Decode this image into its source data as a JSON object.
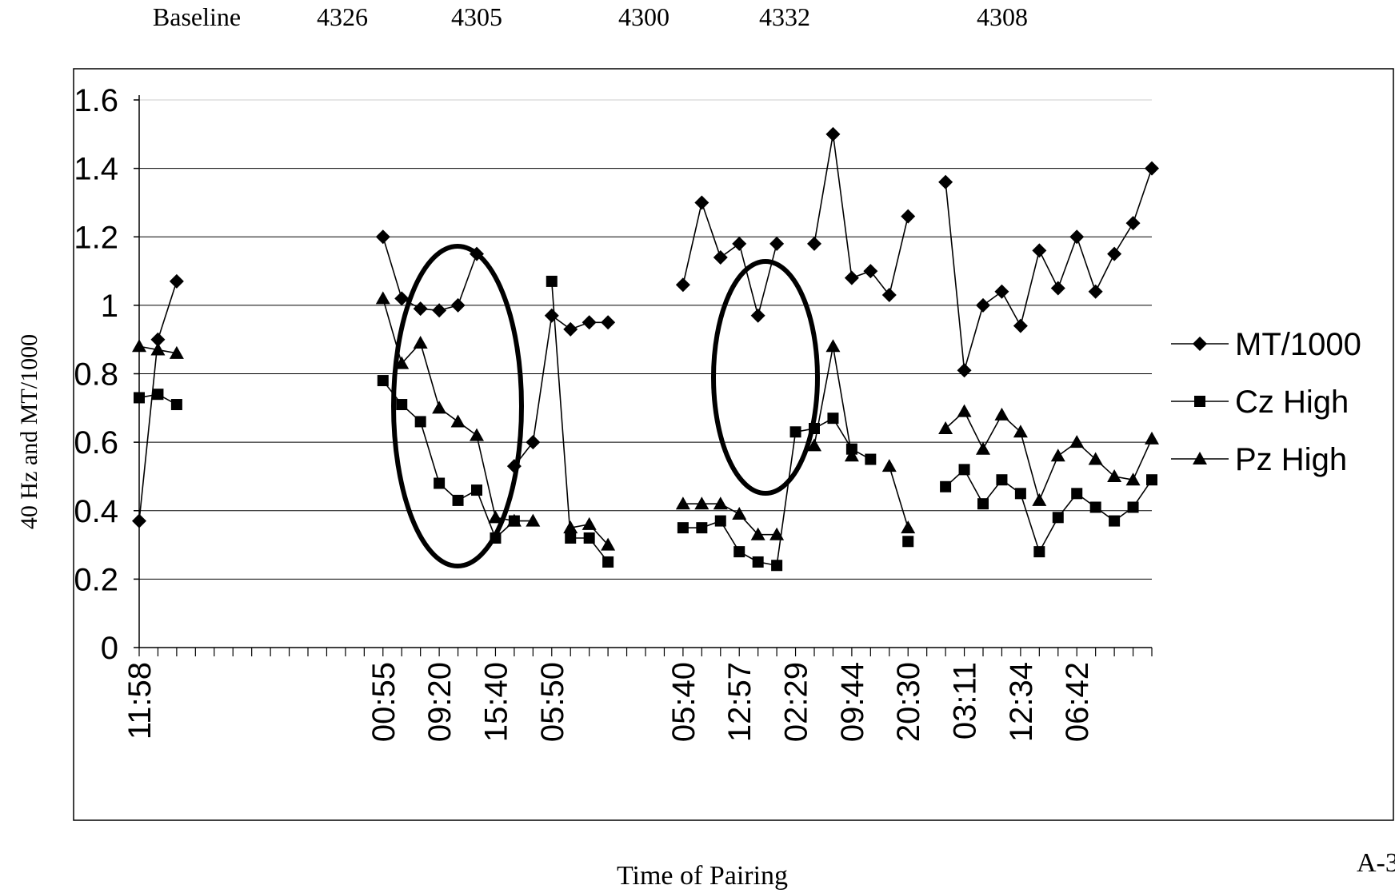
{
  "header": {
    "groups": [
      "Baseline",
      "4326",
      "4305",
      "4300",
      "4332",
      "4308"
    ]
  },
  "page_label": "A-3",
  "chart_data": {
    "type": "line",
    "xlabel": "Time of Pairing",
    "ylabel": "40 Hz and MT/1000",
    "ylim": [
      0,
      1.6
    ],
    "yticks": [
      "0",
      "0.2",
      "0.4",
      "0.6",
      "0.8",
      "1",
      "1.2",
      "1.4",
      "1.6"
    ],
    "grid": true,
    "legend_position": "right",
    "categories": [
      "11:58",
      "",
      "",
      "",
      "",
      "",
      "",
      "",
      "",
      "",
      "",
      "",
      "",
      "00:55",
      "",
      "",
      "09:20",
      "",
      "",
      "15:40",
      "",
      "",
      "05:50",
      "",
      "",
      "",
      "",
      "",
      "",
      "05:40",
      "",
      "",
      "12:57",
      "",
      "",
      "02:29",
      "",
      "",
      "09:44",
      "",
      "",
      "20:30",
      "",
      "",
      "03:11",
      "",
      "",
      "12:34",
      "",
      "",
      "06:42",
      "",
      "",
      "",
      ""
    ],
    "series": [
      {
        "name": "MT/1000",
        "marker": "diamond",
        "values": [
          0.37,
          0.9,
          1.07,
          null,
          null,
          null,
          null,
          null,
          null,
          null,
          null,
          null,
          null,
          1.2,
          1.02,
          0.99,
          0.985,
          1.0,
          1.15,
          null,
          0.53,
          0.6,
          0.97,
          0.93,
          0.95,
          0.95,
          null,
          null,
          null,
          1.06,
          1.3,
          1.14,
          1.18,
          0.97,
          1.18,
          null,
          1.18,
          1.5,
          1.08,
          1.1,
          1.03,
          1.26,
          null,
          1.36,
          0.81,
          1.0,
          1.04,
          0.94,
          1.16,
          1.05,
          1.2,
          1.04,
          1.15,
          1.24,
          1.4
        ]
      },
      {
        "name": "Cz High",
        "marker": "square",
        "values": [
          0.73,
          0.74,
          0.71,
          null,
          null,
          null,
          null,
          null,
          null,
          null,
          null,
          null,
          null,
          0.78,
          0.71,
          0.66,
          0.48,
          0.43,
          0.46,
          0.32,
          0.37,
          null,
          1.07,
          0.32,
          0.32,
          0.25,
          null,
          null,
          null,
          0.35,
          0.35,
          0.37,
          0.28,
          0.25,
          0.24,
          0.63,
          0.64,
          0.67,
          0.58,
          0.55,
          null,
          0.31,
          null,
          0.47,
          0.52,
          0.42,
          0.49,
          0.45,
          0.28,
          0.38,
          0.45,
          0.41,
          0.37,
          0.41,
          0.49
        ]
      },
      {
        "name": "Pz High",
        "marker": "triangle",
        "values": [
          0.88,
          0.87,
          0.86,
          null,
          null,
          null,
          null,
          null,
          null,
          null,
          null,
          null,
          null,
          1.02,
          0.83,
          0.89,
          0.7,
          0.66,
          0.62,
          0.38,
          0.37,
          0.37,
          null,
          0.35,
          0.36,
          0.3,
          null,
          null,
          null,
          0.42,
          0.42,
          0.42,
          0.39,
          0.33,
          0.33,
          null,
          0.59,
          0.88,
          0.56,
          null,
          0.53,
          0.35,
          null,
          0.64,
          0.69,
          0.58,
          0.68,
          0.63,
          0.43,
          0.56,
          0.6,
          0.55,
          0.5,
          0.49,
          0.61
        ]
      }
    ],
    "annotations": [
      "ellipse around 4305 peak",
      "ellipse around 4332 peak"
    ]
  }
}
